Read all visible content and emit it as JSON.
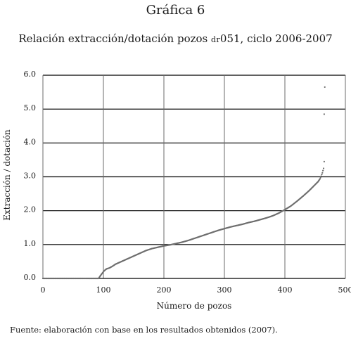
{
  "figure_label": "Gráfica 6",
  "title_prefix": "Relación extracción/dotación pozos ",
  "title_code": "dr",
  "title_suffix": "051, ciclo 2006-2007",
  "source": "Fuente: elaboración con base en los resultados obtenidos (2007).",
  "chart_data": {
    "type": "scatter",
    "title": "Relación extracción/dotación pozos DR051, ciclo 2006-2007",
    "xlabel": "Número de pozos",
    "ylabel": "Extracción / dotación",
    "xlim": [
      0,
      500
    ],
    "ylim": [
      0,
      6
    ],
    "x_ticks": [
      0,
      100,
      200,
      300,
      400,
      500
    ],
    "y_ticks": [
      "0.0",
      "1.0",
      "2.0",
      "3.0",
      "4.0",
      "5.0",
      "6.0"
    ],
    "grid": true,
    "legend": "none",
    "point_color": "#6e6e6e",
    "series": [
      {
        "points": [
          [
            0,
            0.0
          ],
          [
            92,
            0.0
          ],
          [
            95,
            0.08
          ],
          [
            98,
            0.15
          ],
          [
            101,
            0.22
          ],
          [
            105,
            0.28
          ],
          [
            110,
            0.31
          ],
          [
            115,
            0.36
          ],
          [
            120,
            0.42
          ],
          [
            130,
            0.5
          ],
          [
            140,
            0.58
          ],
          [
            150,
            0.66
          ],
          [
            160,
            0.74
          ],
          [
            170,
            0.82
          ],
          [
            180,
            0.88
          ],
          [
            190,
            0.92
          ],
          [
            200,
            0.96
          ],
          [
            210,
            0.99
          ],
          [
            220,
            1.03
          ],
          [
            230,
            1.07
          ],
          [
            240,
            1.12
          ],
          [
            250,
            1.18
          ],
          [
            260,
            1.24
          ],
          [
            270,
            1.3
          ],
          [
            280,
            1.36
          ],
          [
            290,
            1.42
          ],
          [
            300,
            1.47
          ],
          [
            310,
            1.52
          ],
          [
            320,
            1.56
          ],
          [
            330,
            1.6
          ],
          [
            340,
            1.65
          ],
          [
            350,
            1.69
          ],
          [
            360,
            1.74
          ],
          [
            370,
            1.79
          ],
          [
            380,
            1.85
          ],
          [
            390,
            1.93
          ],
          [
            400,
            2.03
          ],
          [
            410,
            2.14
          ],
          [
            420,
            2.28
          ],
          [
            430,
            2.43
          ],
          [
            440,
            2.59
          ],
          [
            450,
            2.77
          ],
          [
            455,
            2.86
          ],
          [
            458,
            2.94
          ],
          [
            460,
            3.02
          ],
          [
            462,
            3.12
          ],
          [
            464,
            3.25
          ],
          [
            465,
            3.45
          ]
        ],
        "outliers": [
          [
            465,
            4.85
          ],
          [
            466,
            5.65
          ]
        ]
      }
    ]
  }
}
